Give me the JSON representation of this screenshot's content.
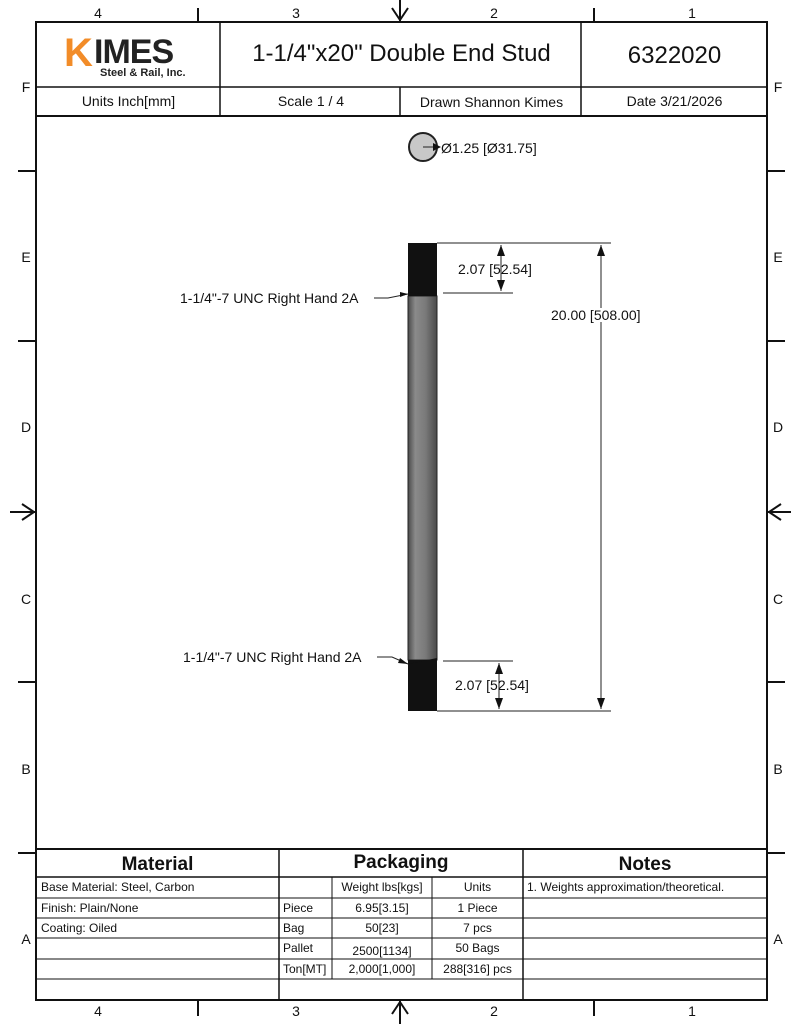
{
  "border": {
    "zone_numbers": [
      "4",
      "3",
      "2",
      "1"
    ],
    "zone_letters": [
      "F",
      "E",
      "D",
      "C",
      "B",
      "A"
    ]
  },
  "title_block": {
    "logo": {
      "mark": "K",
      "word": "IMES",
      "tagline": "Steel & Rail, Inc.",
      "brand_color": "#f28c28"
    },
    "title": "1-1/4\"x20\" Double End Stud",
    "part_number": "6322020",
    "units": "Units Inch[mm]",
    "scale": "Scale 1 / 4",
    "drawn": "Drawn Shannon Kimes",
    "date": "Date 3/21/2026"
  },
  "drawing": {
    "diameter_label": "Ø1.25 [Ø31.75]",
    "thread_callout_top": "1-1/4\"-7 UNC Right Hand 2A",
    "thread_callout_bottom": "1-1/4\"-7 UNC Right Hand 2A",
    "thread_length_top": "2.07 [52.54]",
    "thread_length_bottom": "2.07 [52.54]",
    "overall_length": "20.00 [508.00]"
  },
  "bottom_block": {
    "material": {
      "heading": "Material",
      "rows": [
        "Base Material: Steel, Carbon",
        "Finish: Plain/None",
        "Coating: Oiled",
        "",
        ""
      ]
    },
    "packaging": {
      "heading": "Packaging",
      "col_weight": "Weight lbs[kgs]",
      "col_units": "Units",
      "rows": [
        {
          "label": "Piece",
          "weight": "6.95[3.15]",
          "units": "1 Piece"
        },
        {
          "label": "Bag",
          "weight": "50[23]",
          "units": "7 pcs"
        },
        {
          "label": "Pallet",
          "weight": "2500[1134]",
          "units": "50 Bags"
        },
        {
          "label": "Ton[MT]",
          "weight": "2,000[1,000]",
          "units": "288[316] pcs"
        }
      ]
    },
    "notes": {
      "heading": "Notes",
      "rows": [
        "1. Weights approximation/theoretical.",
        "",
        "",
        "",
        ""
      ]
    }
  }
}
